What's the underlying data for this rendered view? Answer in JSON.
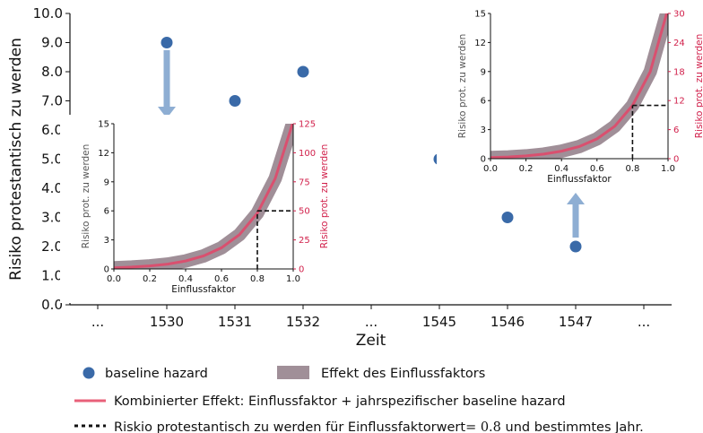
{
  "chart_data": [
    {
      "type": "scatter",
      "xlabel": "Zeit",
      "ylabel": "Risiko protestantisch zu werden",
      "ylim": [
        0,
        10
      ],
      "yticks": [
        "0.0",
        "1.0",
        "2.0",
        "3.0",
        "4.0",
        "5.0",
        "6.0",
        "7.0",
        "8.0",
        "9.0",
        "10.0"
      ],
      "categories": [
        "...",
        "1530",
        "1531",
        "1532",
        "...",
        "1545",
        "1546",
        "1547",
        "..."
      ],
      "series": [
        {
          "name": "baseline hazard",
          "color": "#3a6aa8",
          "points": [
            {
              "x": "1530",
              "y": 9.0
            },
            {
              "x": "1531",
              "y": 7.0
            },
            {
              "x": "1532",
              "y": 8.0
            },
            {
              "x": "1545",
              "y": 5.0
            },
            {
              "x": "1546",
              "y": 3.0
            },
            {
              "x": "1547",
              "y": 2.0
            }
          ]
        }
      ],
      "arrows": [
        {
          "from_year": "1530",
          "direction": "down",
          "to": "inset-left"
        },
        {
          "from_year": "1547",
          "direction": "up",
          "to": "inset-right"
        }
      ]
    },
    {
      "type": "line",
      "inset": "left",
      "xlabel": "Einflussfaktor",
      "ylabel_left": "Risiko prot. zu werden",
      "ylabel_right": "Risiko prot. zu werden",
      "xlim": [
        0,
        1
      ],
      "ylim_left": [
        0,
        15
      ],
      "ylim_right": [
        0,
        125
      ],
      "xticks": [
        "0.0",
        "0.2",
        "0.4",
        "0.6",
        "0.8",
        "1.0"
      ],
      "yticks_left": [
        "0",
        "3",
        "6",
        "9",
        "12",
        "15"
      ],
      "yticks_right": [
        "0",
        "25",
        "50",
        "75",
        "100",
        "125"
      ],
      "curve": {
        "x": [
          0,
          0.1,
          0.2,
          0.3,
          0.4,
          0.5,
          0.6,
          0.7,
          0.8,
          0.9,
          1.0
        ],
        "y_right": [
          1.0,
          1.6,
          2.6,
          4.2,
          6.9,
          11.2,
          18.2,
          29.5,
          48,
          78,
          127
        ]
      },
      "marker": {
        "x": 0.8,
        "y_right": 50
      }
    },
    {
      "type": "line",
      "inset": "right",
      "xlabel": "Einflussfaktor",
      "ylabel_left": "Risiko prot. zu werden",
      "ylabel_right": "Risiko prot. zu werden",
      "xlim": [
        0,
        1
      ],
      "ylim_left": [
        0,
        15
      ],
      "ylim_right": [
        0,
        30
      ],
      "xticks": [
        "0.0",
        "0.2",
        "0.4",
        "0.6",
        "0.8",
        "1.0"
      ],
      "yticks_left": [
        "0",
        "3",
        "6",
        "9",
        "12",
        "15"
      ],
      "yticks_right": [
        "0",
        "6",
        "12",
        "18",
        "24",
        "30"
      ],
      "curve": {
        "x": [
          0,
          0.1,
          0.2,
          0.3,
          0.4,
          0.5,
          0.6,
          0.7,
          0.8,
          0.9,
          1.0
        ],
        "y_right": [
          0.22,
          0.36,
          0.58,
          0.95,
          1.55,
          2.5,
          4.1,
          6.7,
          11,
          18,
          31
        ]
      },
      "marker": {
        "x": 0.8,
        "y_right": 11
      }
    }
  ],
  "legend": [
    {
      "label": "baseline hazard",
      "kind": "dot",
      "color": "#3a6aa8"
    },
    {
      "label": "Effekt des Einflussfaktors",
      "kind": "band",
      "color": "#a08f98"
    },
    {
      "label": "Kombinierter Effekt: Einflussfaktor + jahrspezifischer baseline hazard",
      "kind": "line",
      "color": "#e8607a"
    },
    {
      "label_before": "Riskio protestantisch zu werden für Einflussfaktorwert",
      "label_math": "= 0.8",
      "label_after": " und bestimmtes Jahr.",
      "kind": "dotted",
      "color": "#111111"
    }
  ],
  "colors": {
    "dot": "#3a6aa8",
    "arrow": "#8eaed3",
    "band": "#a08f98",
    "curve": "#d9506f",
    "right_axis": "#d11f4a"
  }
}
